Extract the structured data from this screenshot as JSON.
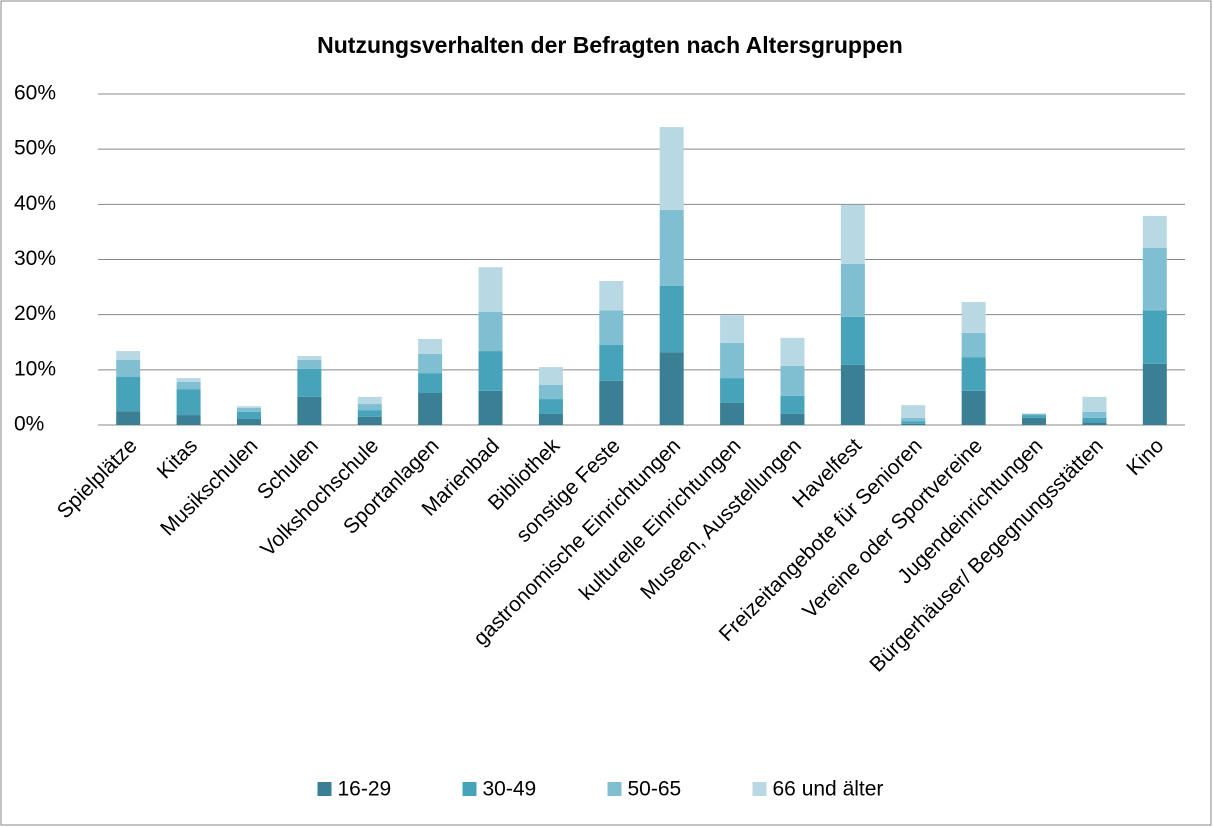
{
  "chart_data": {
    "type": "stacked_bar",
    "title": "Nutzungsverhalten der Befragten nach Altersgruppen",
    "categories": [
      "Spielplätze",
      "Kitas",
      "Musikschulen",
      "Schulen",
      "Volkshochschule",
      "Sportanlagen",
      "Marienbad",
      "Bibliothek",
      "sonstige Feste",
      "gastronomische Einrichtungen",
      "kulturelle Einrichtungen",
      "Museen, Ausstellungen",
      "Havelfest",
      "Freizeitangebote für Senioren",
      "Vereine oder Sportvereine",
      "Jugendeinrichtungen",
      "Bürgerhäuser/ Begegnungsstätten",
      "Kino"
    ],
    "series": [
      {
        "name": "16-29",
        "color": "#3a7f93",
        "values": [
          2.5,
          1.8,
          1.1,
          5.1,
          1.5,
          5.8,
          6.2,
          2.0,
          8.0,
          13.2,
          4.0,
          2.0,
          10.9,
          0.2,
          6.2,
          1.3,
          0.5,
          11.1
        ]
      },
      {
        "name": "30-49",
        "color": "#47a3ba",
        "values": [
          6.2,
          4.7,
          1.3,
          5.1,
          1.2,
          3.6,
          7.2,
          2.7,
          6.5,
          12.0,
          4.5,
          3.3,
          8.7,
          0.5,
          6.1,
          0.5,
          0.8,
          9.7
        ]
      },
      {
        "name": "50-65",
        "color": "#80bfd2",
        "values": [
          3.1,
          1.3,
          0.7,
          1.6,
          1.1,
          3.5,
          7.1,
          2.6,
          6.3,
          13.8,
          6.4,
          5.4,
          9.6,
          0.6,
          4.4,
          0.2,
          1.1,
          11.3
        ]
      },
      {
        "name": "66 und älter",
        "color": "#b8d8e4",
        "values": [
          1.6,
          0.7,
          0.3,
          0.7,
          1.3,
          2.7,
          8.1,
          3.2,
          5.3,
          15.0,
          5.0,
          5.1,
          10.7,
          2.3,
          5.6,
          0.1,
          2.7,
          5.8
        ]
      }
    ],
    "ylim": [
      0,
      60
    ],
    "yticks": [
      {
        "value": 0,
        "label": "0%"
      },
      {
        "value": 10,
        "label": "10%"
      },
      {
        "value": 20,
        "label": "20%"
      },
      {
        "value": 30,
        "label": "30%"
      },
      {
        "value": 40,
        "label": "40%"
      },
      {
        "value": 50,
        "label": "50%"
      },
      {
        "value": 60,
        "label": "60%"
      }
    ],
    "grid": true,
    "legend": "bottom"
  }
}
